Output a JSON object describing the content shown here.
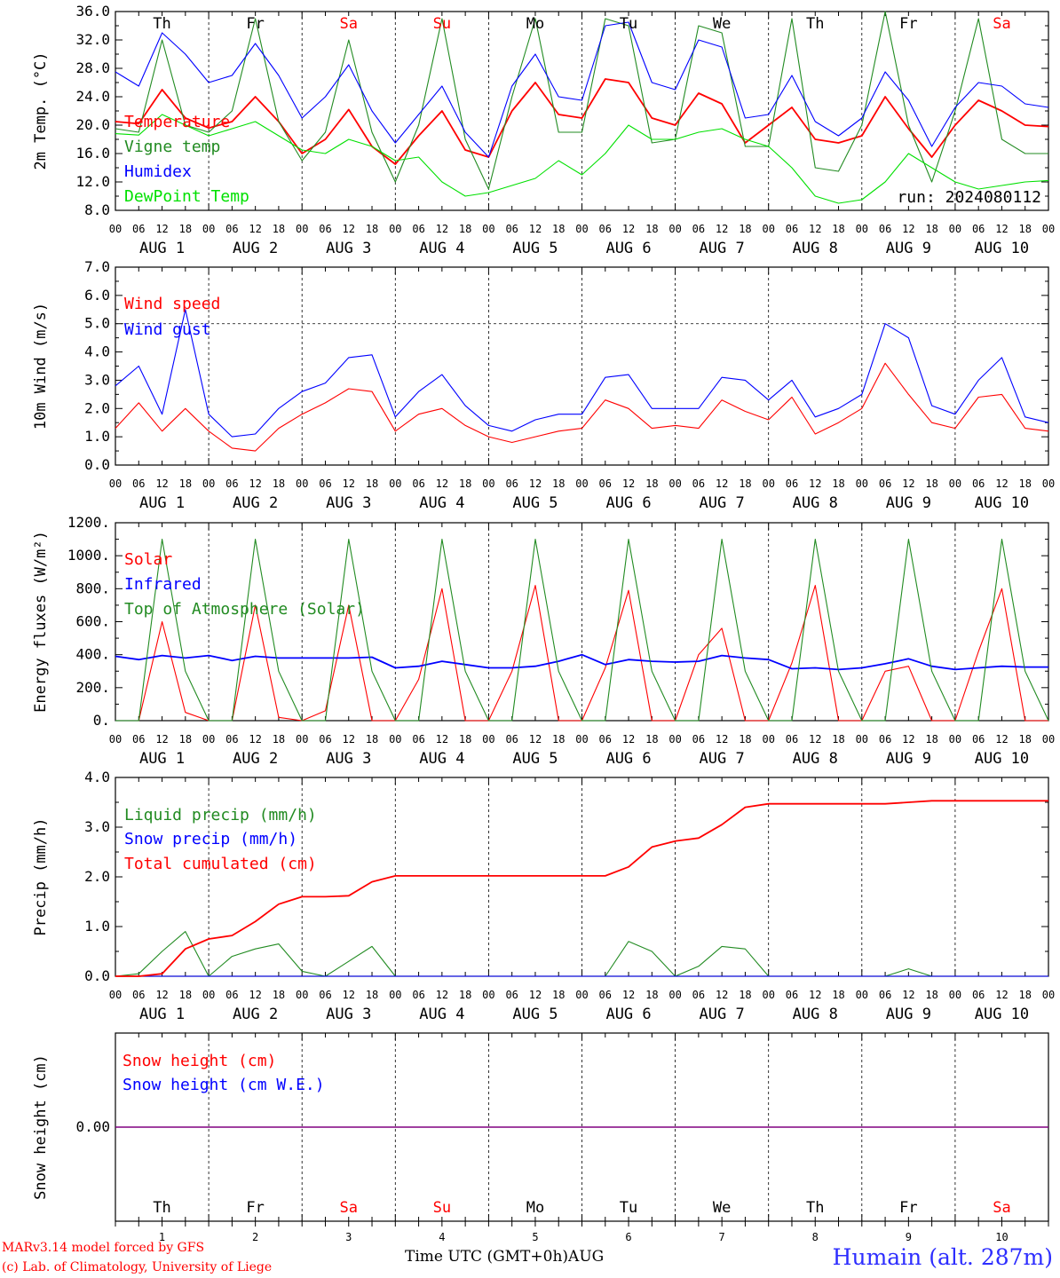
{
  "footer": {
    "model": "MARv3.14 model forced by GFS",
    "credit": "(c) Lab. of Climatology, University of Liege",
    "axis_title": "Time UTC (GMT+0h)",
    "month": "AUG",
    "station": "Humain (alt. 287m)"
  },
  "days": [
    {
      "weekday": "Th",
      "date": "1",
      "weekend": false
    },
    {
      "weekday": "Fr",
      "date": "2",
      "weekend": false
    },
    {
      "weekday": "Sa",
      "date": "3",
      "weekend": true
    },
    {
      "weekday": "Su",
      "date": "4",
      "weekend": true
    },
    {
      "weekday": "Mo",
      "date": "5",
      "weekend": false
    },
    {
      "weekday": "Tu",
      "date": "6",
      "weekend": false
    },
    {
      "weekday": "We",
      "date": "7",
      "weekend": false
    },
    {
      "weekday": "Th",
      "date": "8",
      "weekend": false
    },
    {
      "weekday": "Fr",
      "date": "9",
      "weekend": false
    },
    {
      "weekday": "Sa",
      "date": "10",
      "weekend": true
    }
  ],
  "date_labels": [
    "AUG  1",
    "AUG  2",
    "AUG  3",
    "AUG  4",
    "AUG  5",
    "AUG  6",
    "AUG  7",
    "AUG  8",
    "AUG  9",
    "AUG 10"
  ],
  "hour_labels": [
    "00",
    "06",
    "12",
    "18"
  ],
  "colors": {
    "red": "#ff0000",
    "green": "#228b22",
    "blue": "#0000ff",
    "lightgreen": "#00e000",
    "weekend": "#ff0000",
    "snow": "#800080"
  },
  "chart_data": [
    {
      "type": "line",
      "ylabel": "2m Temp. (°C)",
      "ylim": [
        8,
        36
      ],
      "yticks": [
        "8.0",
        "12.0",
        "16.0",
        "20.0",
        "24.0",
        "28.0",
        "32.0",
        "36.0"
      ],
      "annotation": "run: 2024080112",
      "x_hours": [
        0,
        6,
        12,
        18,
        24,
        30,
        36,
        42,
        48,
        54,
        60,
        66,
        72,
        78,
        84,
        90,
        96,
        102,
        108,
        114,
        120,
        126,
        132,
        138,
        144,
        150,
        156,
        162,
        168,
        174,
        180,
        186,
        192,
        198,
        204,
        210,
        216,
        222,
        228,
        234,
        240
      ],
      "series": [
        {
          "name": "Temperature",
          "color": "#ff0000",
          "values": [
            20.5,
            20.2,
            25.0,
            21.0,
            19.6,
            20.5,
            24.0,
            20.5,
            16.0,
            18.0,
            22.2,
            17.0,
            14.5,
            18.5,
            22.0,
            16.5,
            15.5,
            22.0,
            26.0,
            21.5,
            21.0,
            26.5,
            26.0,
            21.0,
            20.0,
            24.5,
            23.0,
            17.5,
            20.0,
            22.5,
            18.0,
            17.5,
            18.5,
            24.0,
            19.5,
            15.5,
            20.0,
            23.5,
            22.0,
            20.0,
            19.8
          ]
        },
        {
          "name": "Vigne temp",
          "color": "#228b22",
          "values": [
            19.5,
            19.0,
            32.0,
            20.0,
            19.0,
            22.0,
            35.0,
            20.5,
            15.0,
            19.0,
            32.0,
            19.0,
            12.0,
            20.0,
            35.0,
            18.0,
            11.0,
            24.0,
            35.0,
            19.0,
            19.0,
            35.0,
            34.0,
            17.5,
            18.0,
            34.0,
            33.0,
            17.0,
            17.0,
            35.0,
            14.0,
            13.5,
            20.0,
            36.0,
            20.0,
            12.0,
            22.0,
            35.0,
            18.0,
            16.0,
            16.0
          ]
        },
        {
          "name": "Humidex",
          "color": "#0000ff",
          "values": [
            27.5,
            25.5,
            33.0,
            30.0,
            26.0,
            27.0,
            31.5,
            27.0,
            21.0,
            24.0,
            28.5,
            22.0,
            17.5,
            21.5,
            25.5,
            19.0,
            15.5,
            25.5,
            30.0,
            24.0,
            23.5,
            34.0,
            34.5,
            26.0,
            25.0,
            32.0,
            31.0,
            21.0,
            21.5,
            27.0,
            20.5,
            18.5,
            21.0,
            27.5,
            23.5,
            17.0,
            22.5,
            26.0,
            25.5,
            23.0,
            22.5
          ]
        },
        {
          "name": "DewPoint Temp",
          "color": "#00e000",
          "values": [
            18.8,
            18.6,
            21.5,
            20.0,
            18.5,
            19.5,
            20.5,
            18.5,
            16.5,
            16.0,
            18.0,
            17.0,
            15.0,
            15.5,
            12.0,
            10.0,
            10.5,
            11.5,
            12.5,
            15.0,
            13.0,
            16.0,
            20.0,
            18.0,
            18.0,
            19.0,
            19.5,
            18.0,
            17.0,
            14.0,
            10.0,
            9.0,
            9.5,
            12.0,
            16.0,
            14.0,
            12.0,
            11.0,
            11.5,
            12.0,
            12.2
          ]
        }
      ]
    },
    {
      "type": "line",
      "ylabel": "10m Wind (m/s)",
      "ylim": [
        0,
        7
      ],
      "yticks": [
        "0.0",
        "1.0",
        "2.0",
        "3.0",
        "4.0",
        "5.0",
        "6.0",
        "7.0"
      ],
      "x_hours": [
        0,
        6,
        12,
        18,
        24,
        30,
        36,
        42,
        48,
        54,
        60,
        66,
        72,
        78,
        84,
        90,
        96,
        102,
        108,
        114,
        120,
        126,
        132,
        138,
        144,
        150,
        156,
        162,
        168,
        174,
        180,
        186,
        192,
        198,
        204,
        210,
        216,
        222,
        228,
        234,
        240
      ],
      "series": [
        {
          "name": "Wind speed",
          "color": "#ff0000",
          "values": [
            1.3,
            2.2,
            1.2,
            2.0,
            1.2,
            0.6,
            0.5,
            1.3,
            1.8,
            2.2,
            2.7,
            2.6,
            1.2,
            1.8,
            2.0,
            1.4,
            1.0,
            0.8,
            1.0,
            1.2,
            1.3,
            2.3,
            2.0,
            1.3,
            1.4,
            1.3,
            2.3,
            1.9,
            1.6,
            2.4,
            1.1,
            1.5,
            2.0,
            3.6,
            2.5,
            1.5,
            1.3,
            2.4,
            2.5,
            1.3,
            1.2
          ]
        },
        {
          "name": "Wind gust",
          "color": "#0000ff",
          "values": [
            2.8,
            3.5,
            1.8,
            5.5,
            1.8,
            1.0,
            1.1,
            2.0,
            2.6,
            2.9,
            3.8,
            3.9,
            1.7,
            2.6,
            3.2,
            2.1,
            1.4,
            1.2,
            1.6,
            1.8,
            1.8,
            3.1,
            3.2,
            2.0,
            2.0,
            2.0,
            3.1,
            3.0,
            2.3,
            3.0,
            1.7,
            2.0,
            2.5,
            5.0,
            4.5,
            2.1,
            1.8,
            3.0,
            3.8,
            1.7,
            1.5
          ]
        }
      ]
    },
    {
      "type": "line",
      "ylabel": "Energy fluxes (W/m²)",
      "ylim": [
        0,
        1200
      ],
      "yticks": [
        "0.",
        "200.",
        "400.",
        "600.",
        "800.",
        "1000.",
        "1200."
      ],
      "x_hours": [
        0,
        6,
        12,
        18,
        24,
        30,
        36,
        42,
        48,
        54,
        60,
        66,
        72,
        78,
        84,
        90,
        96,
        102,
        108,
        114,
        120,
        126,
        132,
        138,
        144,
        150,
        156,
        162,
        168,
        174,
        180,
        186,
        192,
        198,
        204,
        210,
        216,
        222,
        228,
        234,
        240
      ],
      "series": [
        {
          "name": "Solar",
          "color": "#ff0000",
          "values": [
            0,
            0,
            600,
            50,
            0,
            0,
            700,
            20,
            0,
            60,
            700,
            0,
            0,
            250,
            800,
            0,
            0,
            300,
            820,
            0,
            0,
            320,
            790,
            0,
            0,
            400,
            560,
            0,
            0,
            350,
            820,
            0,
            0,
            300,
            330,
            0,
            0,
            420,
            800,
            0,
            0
          ]
        },
        {
          "name": "Infrared",
          "color": "#0000ff",
          "values": [
            390,
            370,
            395,
            380,
            395,
            365,
            390,
            380,
            380,
            380,
            380,
            385,
            320,
            330,
            360,
            340,
            320,
            320,
            330,
            360,
            400,
            340,
            370,
            360,
            355,
            360,
            395,
            380,
            370,
            315,
            320,
            310,
            320,
            345,
            375,
            330,
            310,
            320,
            330,
            325,
            325
          ]
        },
        {
          "name": "Top of Atmosphere (Solar)",
          "color": "#228b22",
          "values": [
            0,
            0,
            1100,
            300,
            0,
            0,
            1100,
            300,
            0,
            0,
            1100,
            300,
            0,
            0,
            1100,
            300,
            0,
            0,
            1100,
            300,
            0,
            0,
            1100,
            300,
            0,
            0,
            1100,
            300,
            0,
            0,
            1100,
            300,
            0,
            0,
            1100,
            300,
            0,
            0,
            1100,
            300,
            0
          ]
        }
      ]
    },
    {
      "type": "line",
      "ylabel": "Precip (mm/h)",
      "ylim": [
        0,
        4
      ],
      "yticks": [
        "0.0",
        "1.0",
        "2.0",
        "3.0",
        "4.0"
      ],
      "x_hours": [
        0,
        6,
        12,
        18,
        24,
        30,
        36,
        42,
        48,
        54,
        60,
        66,
        72,
        78,
        84,
        90,
        96,
        102,
        108,
        114,
        120,
        126,
        132,
        138,
        144,
        150,
        156,
        162,
        168,
        174,
        180,
        186,
        192,
        198,
        204,
        210,
        216,
        222,
        228,
        234,
        240
      ],
      "series": [
        {
          "name": "Liquid precip (mm/h)",
          "color": "#228b22",
          "values": [
            0,
            0.05,
            0.5,
            0.9,
            0,
            0.4,
            0.55,
            0.65,
            0.1,
            0,
            0.3,
            0.6,
            0,
            0,
            0,
            0,
            0,
            0,
            0,
            0,
            0,
            0,
            0.7,
            0.5,
            0,
            0.2,
            0.6,
            0.55,
            0,
            0,
            0,
            0,
            0,
            0,
            0.15,
            0,
            0,
            0,
            0,
            0,
            0
          ]
        },
        {
          "name": "Snow precip (mm/h)",
          "color": "#0000ff",
          "values": [
            0,
            0,
            0,
            0,
            0,
            0,
            0,
            0,
            0,
            0,
            0,
            0,
            0,
            0,
            0,
            0,
            0,
            0,
            0,
            0,
            0,
            0,
            0,
            0,
            0,
            0,
            0,
            0,
            0,
            0,
            0,
            0,
            0,
            0,
            0,
            0,
            0,
            0,
            0,
            0,
            0
          ]
        },
        {
          "name": "Total cumulated (cm)",
          "color": "#ff0000",
          "values": [
            0,
            0,
            0.05,
            0.55,
            0.75,
            0.82,
            1.1,
            1.45,
            1.6,
            1.6,
            1.62,
            1.9,
            2.02,
            2.02,
            2.02,
            2.02,
            2.02,
            2.02,
            2.02,
            2.02,
            2.02,
            2.02,
            2.2,
            2.6,
            2.72,
            2.78,
            3.05,
            3.4,
            3.47,
            3.47,
            3.47,
            3.47,
            3.47,
            3.47,
            3.5,
            3.53,
            3.53,
            3.53,
            3.53,
            3.53,
            3.53
          ]
        }
      ]
    },
    {
      "type": "line",
      "ylabel": "Snow height (cm)",
      "ylim": [
        -1,
        1
      ],
      "yticks": [
        "0.00"
      ],
      "x_hours": [
        0,
        240
      ],
      "series": [
        {
          "name": "Snow height (cm)",
          "color": "#ff0000",
          "values": [
            0,
            0
          ]
        },
        {
          "name": "Snow height (cm W.E.)",
          "color": "#0000ff",
          "values": [
            0,
            0
          ]
        }
      ]
    }
  ]
}
